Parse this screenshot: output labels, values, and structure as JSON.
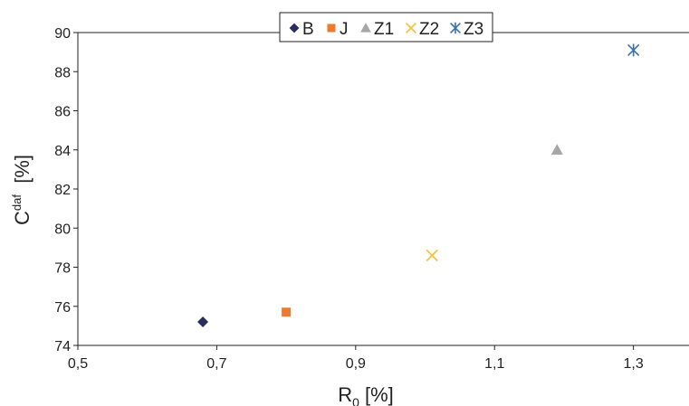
{
  "chart_data": {
    "type": "scatter",
    "title": "",
    "x_range": [
      0.5,
      1.38
    ],
    "y_range": [
      74,
      90
    ],
    "x_ticks": [
      "0,5",
      "0,7",
      "0,9",
      "1,1",
      "1,3"
    ],
    "x_tick_values": [
      0.5,
      0.7,
      0.9,
      1.1,
      1.3
    ],
    "y_ticks": [
      "74",
      "76",
      "78",
      "80",
      "82",
      "84",
      "86",
      "88",
      "90"
    ],
    "y_tick_values": [
      74,
      76,
      78,
      80,
      82,
      84,
      86,
      88,
      90
    ],
    "xlabel": {
      "main": "R",
      "sub": "0",
      "rest": " [%]"
    },
    "ylabel": {
      "main": "C",
      "sup": "daf",
      "rest": "  [%]"
    },
    "grid": false,
    "legend_position": "top-center",
    "series": [
      {
        "name": "B",
        "marker": "diamond",
        "color": "#2b2d5e",
        "x": 0.68,
        "y": 75.2
      },
      {
        "name": "J",
        "marker": "square",
        "color": "#ee7a2e",
        "x": 0.8,
        "y": 75.7
      },
      {
        "name": "Z1",
        "marker": "triangle",
        "color": "#a6a6a6",
        "x": 1.19,
        "y": 84.0
      },
      {
        "name": "Z2",
        "marker": "x",
        "color": "#f5c242",
        "x": 1.01,
        "y": 78.6
      },
      {
        "name": "Z3",
        "marker": "star",
        "color": "#3a6fb0",
        "x": 1.3,
        "y": 89.1
      }
    ]
  }
}
